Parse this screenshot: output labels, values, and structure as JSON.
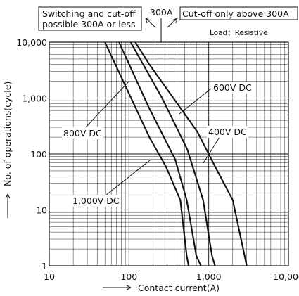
{
  "chart_data": {
    "type": "line",
    "title": "",
    "xlabel": "Contact current(A)",
    "ylabel": "No. of operations(cycle)",
    "x_scale": "log",
    "y_scale": "log",
    "xlim": [
      10,
      10000
    ],
    "ylim": [
      1,
      10000
    ],
    "grid": true,
    "x_ticks": [
      "10",
      "100",
      "1,000",
      "10,000"
    ],
    "y_ticks": [
      "1",
      "10",
      "100",
      "1,000",
      "10,000"
    ],
    "series": [
      {
        "name": "1,000V DC",
        "x": [
          50,
          180,
          290,
          440,
          530,
          560
        ],
        "y": [
          10000,
          200,
          60,
          15,
          1.5,
          1
        ]
      },
      {
        "name": "800V DC",
        "x": [
          75,
          180,
          380,
          530,
          700,
          800
        ],
        "y": [
          10000,
          650,
          80,
          15,
          1.5,
          1
        ]
      },
      {
        "name": "600V DC",
        "x": [
          105,
          260,
          540,
          850,
          1100,
          1200
        ],
        "y": [
          10000,
          1000,
          120,
          15,
          1.5,
          1
        ]
      },
      {
        "name": "400V DC",
        "x": [
          120,
          180,
          720,
          1200,
          2000,
          3000
        ],
        "y": [
          10000,
          4000,
          250,
          60,
          15,
          1
        ]
      }
    ],
    "annotations": [
      {
        "text": "Switching and cut-off",
        "x": 300
      },
      {
        "text": "possible 300A or less",
        "x": 300
      },
      {
        "text": "300A",
        "x": 300
      },
      {
        "text": "Cut-off only above 300A",
        "x": 300
      },
      {
        "text": "Load：Resistive"
      }
    ]
  }
}
